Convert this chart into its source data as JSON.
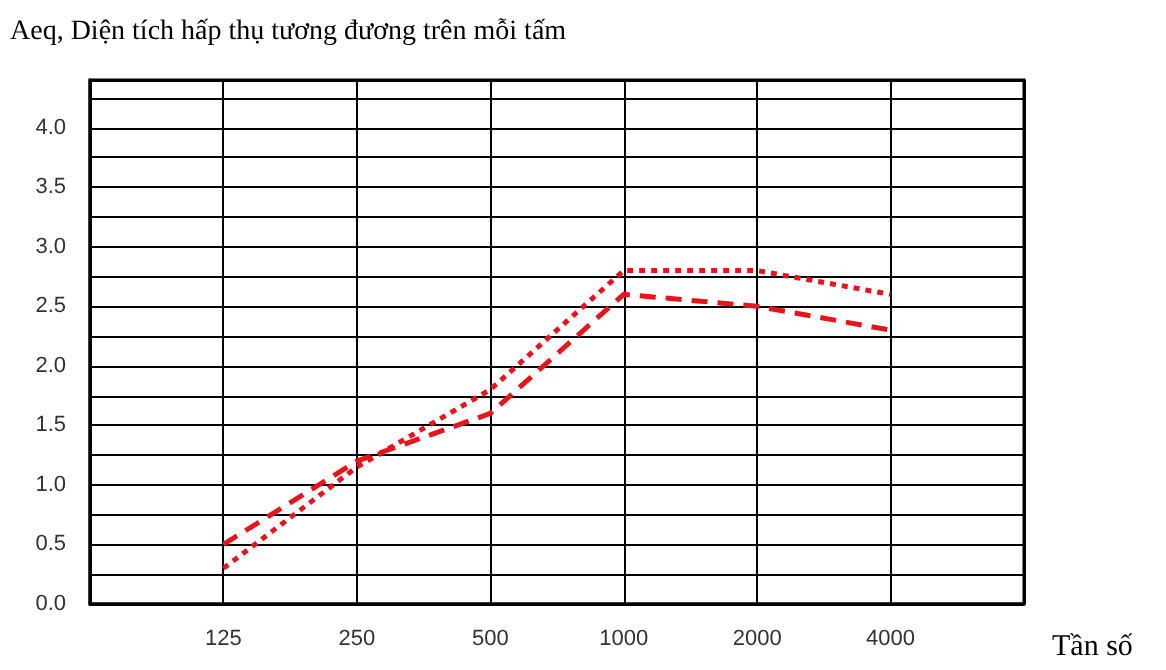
{
  "chart_data": {
    "type": "line",
    "ylabel": "Aeq, Diện tích hấp thụ tương đương trên mỗi tấm",
    "xlabel": "Tần số",
    "categories": [
      null,
      "125",
      "250",
      "500",
      "1000",
      "2000",
      "4000",
      null
    ],
    "series": [
      {
        "color": "#e8141c",
        "line_style": "dashed",
        "values": [
          null,
          0.5,
          1.2,
          1.6,
          2.6,
          2.5,
          2.3,
          null
        ]
      },
      {
        "color": "#e8141c",
        "line_style": "dotted",
        "values": [
          null,
          0.3,
          1.15,
          1.8,
          2.8,
          2.8,
          2.6,
          null
        ]
      }
    ],
    "ylim": [
      0,
      4.4
    ],
    "yticks": [
      {
        "value": 0,
        "label": "0.0"
      },
      {
        "value": 0.25,
        "label": null
      },
      {
        "value": 0.5,
        "label": "0.5"
      },
      {
        "value": 0.75,
        "label": null
      },
      {
        "value": 1,
        "label": "1.0"
      },
      {
        "value": 1.25,
        "label": null
      },
      {
        "value": 1.5,
        "label": "1.5"
      },
      {
        "value": 1.75,
        "label": null
      },
      {
        "value": 2,
        "label": "2.0"
      },
      {
        "value": 2.25,
        "label": null
      },
      {
        "value": 2.5,
        "label": "2.5"
      },
      {
        "value": 2.75,
        "label": null
      },
      {
        "value": 3,
        "label": "3.0"
      },
      {
        "value": 3.25,
        "label": null
      },
      {
        "value": 3.5,
        "label": "3.5"
      },
      {
        "value": 3.75,
        "label": null
      },
      {
        "value": 4,
        "label": "4.0"
      },
      {
        "value": 4.25,
        "label": null
      }
    ],
    "grid": true,
    "marker": "none"
  }
}
